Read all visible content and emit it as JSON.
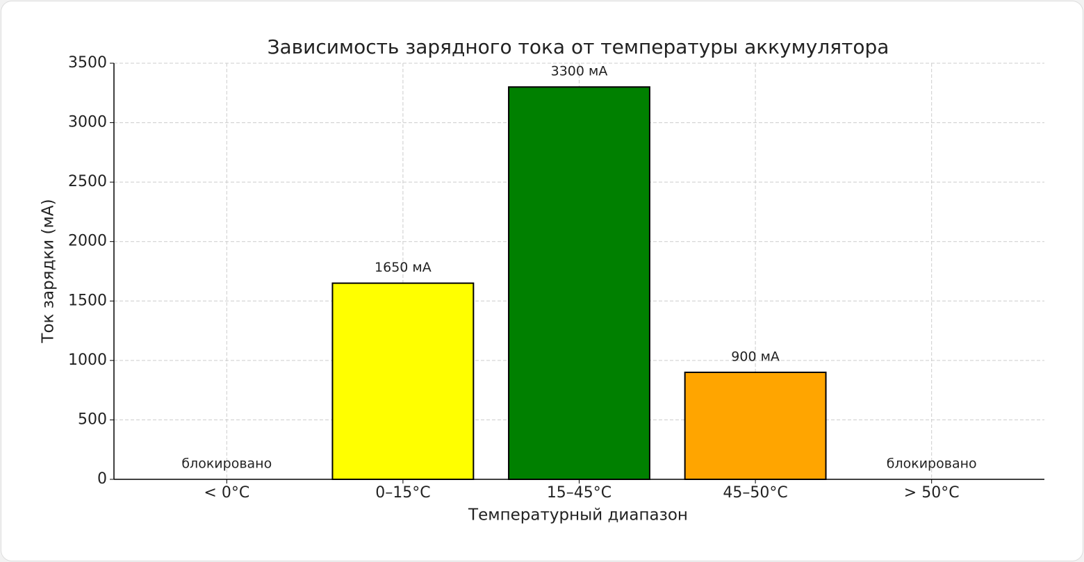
{
  "chart_data": {
    "type": "bar",
    "title": "Зависимость зарядного тока от температуры аккумулятора",
    "x_label": "Температурный диапазон",
    "y_label": "Ток зарядки (мА)",
    "categories": [
      "< 0°C",
      "0–15°C",
      "15–45°C",
      "45–50°C",
      "> 50°C"
    ],
    "values": [
      0,
      1650,
      3300,
      900,
      0
    ],
    "value_labels": [
      "блокировано",
      "1650 мА",
      "3300 мА",
      "900 мА",
      "блокировано"
    ],
    "colors": [
      null,
      "#ffff00",
      "#008000",
      "#ffa500",
      null
    ],
    "ylim": [
      0,
      3500
    ],
    "yticks": [
      0,
      500,
      1000,
      1500,
      2000,
      2500,
      3000,
      3500
    ],
    "grid": true
  }
}
